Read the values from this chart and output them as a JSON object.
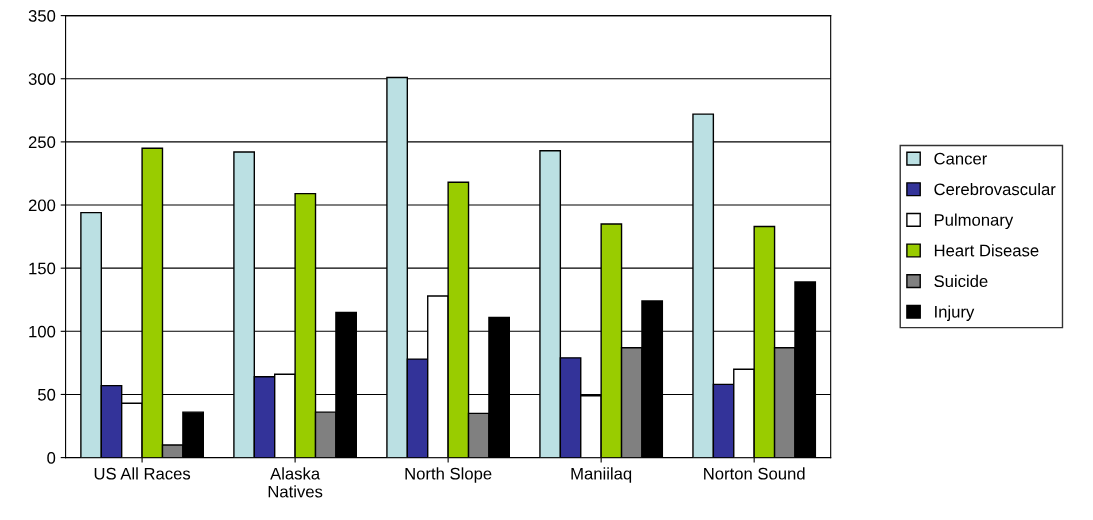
{
  "chart_data": {
    "type": "bar",
    "categories": [
      "US All Races",
      "Alaska\nNatives",
      "North Slope",
      "Maniilaq",
      "Norton Sound"
    ],
    "series": [
      {
        "name": "Cancer",
        "color": "#bbe0e3",
        "values": [
          194,
          242,
          301,
          243,
          272
        ]
      },
      {
        "name": "Cerebrovascular",
        "color": "#333399",
        "values": [
          57,
          64,
          78,
          79,
          58
        ]
      },
      {
        "name": "Pulmonary",
        "color": "#ffffff",
        "values": [
          43,
          66,
          128,
          49,
          70
        ]
      },
      {
        "name": "Heart Disease",
        "color": "#99cc00",
        "values": [
          245,
          209,
          218,
          185,
          183
        ]
      },
      {
        "name": "Suicide",
        "color": "#808080",
        "values": [
          10,
          36,
          35,
          87,
          87
        ]
      },
      {
        "name": "Injury",
        "color": "#000000",
        "values": [
          36,
          115,
          111,
          124,
          139
        ]
      }
    ],
    "ylim": [
      0,
      350
    ],
    "yticks": [
      0,
      50,
      100,
      150,
      200,
      250,
      300,
      350
    ],
    "grid": "y",
    "legend": "right"
  }
}
